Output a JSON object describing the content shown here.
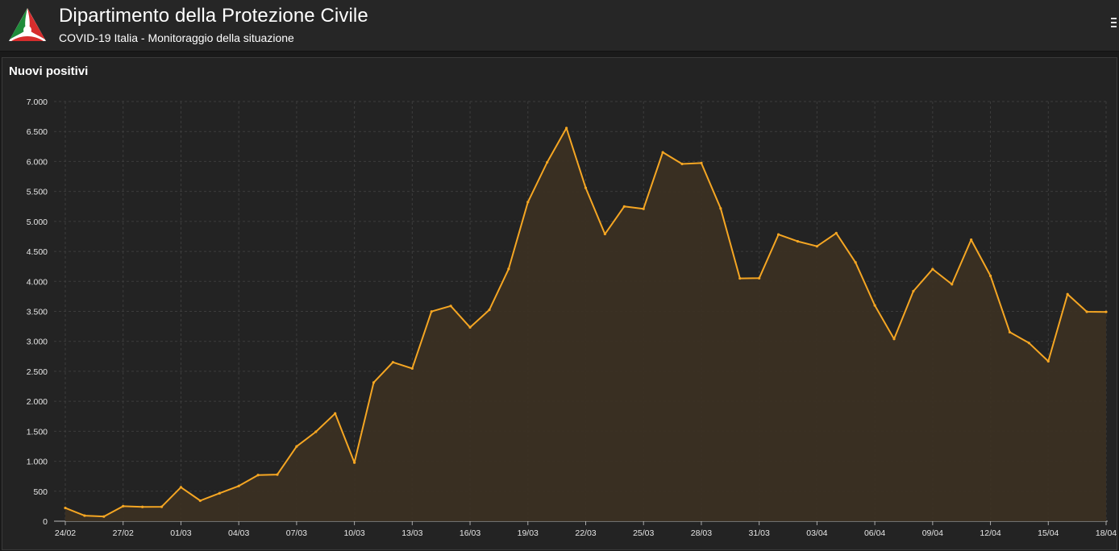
{
  "header": {
    "title": "Dipartimento della Protezione Civile",
    "subtitle": "COVID-19 Italia - Monitoraggio della situazione",
    "logo_icon": "protezione-civile-logo",
    "menu_icon": "hamburger-menu-icon"
  },
  "panel": {
    "title": "Nuovi positivi"
  },
  "colors": {
    "line": "#f5a623",
    "area": "#3b3023",
    "grid": "#3d3d3d",
    "background": "#232323"
  },
  "chart_data": {
    "type": "area",
    "title": "Nuovi positivi",
    "xlabel": "",
    "ylabel": "",
    "ylim": [
      0,
      7000
    ],
    "y_ticks": [
      0,
      500,
      1000,
      1500,
      2000,
      2500,
      3000,
      3500,
      4000,
      4500,
      5000,
      5500,
      6000,
      6500,
      7000
    ],
    "y_tick_labels": [
      "0",
      "500",
      "1.000",
      "1.500",
      "2.000",
      "2.500",
      "3.000",
      "3.500",
      "4.000",
      "4.500",
      "5.000",
      "5.500",
      "6.000",
      "6.500",
      "7.000"
    ],
    "x_tick_labels": [
      "24/02",
      "27/02",
      "01/03",
      "04/03",
      "07/03",
      "10/03",
      "13/03",
      "16/03",
      "19/03",
      "22/03",
      "25/03",
      "28/03",
      "31/03",
      "03/04",
      "06/04",
      "09/04",
      "12/04",
      "15/04",
      "18/04"
    ],
    "grid": true,
    "legend": "none",
    "x": [
      "24/02",
      "25/02",
      "26/02",
      "27/02",
      "28/02",
      "29/02",
      "01/03",
      "02/03",
      "03/03",
      "04/03",
      "05/03",
      "06/03",
      "07/03",
      "08/03",
      "09/03",
      "10/03",
      "11/03",
      "12/03",
      "13/03",
      "14/03",
      "15/03",
      "16/03",
      "17/03",
      "18/03",
      "19/03",
      "20/03",
      "21/03",
      "22/03",
      "23/03",
      "24/03",
      "25/03",
      "26/03",
      "27/03",
      "28/03",
      "29/03",
      "30/03",
      "31/03",
      "01/04",
      "02/04",
      "03/04",
      "04/04",
      "05/04",
      "06/04",
      "07/04",
      "08/04",
      "09/04",
      "10/04",
      "11/04",
      "12/04",
      "13/04",
      "14/04",
      "15/04",
      "16/04",
      "17/04",
      "18/04"
    ],
    "series": [
      {
        "values": [
          221,
          93,
          78,
          250,
          238,
          240,
          566,
          342,
          466,
          587,
          769,
          778,
          1247,
          1492,
          1797,
          977,
          2313,
          2651,
          2547,
          3497,
          3590,
          3233,
          3526,
          4207,
          5322,
          5986,
          6557,
          5560,
          4789,
          5249,
          5210,
          6153,
          5959,
          5974,
          5217,
          4050,
          4053,
          4782,
          4668,
          4585,
          4805,
          4316,
          3599,
          3039,
          3836,
          4204,
          3951,
          4694,
          4092,
          3153,
          2972,
          2667,
          3786,
          3493,
          3491
        ]
      }
    ]
  }
}
